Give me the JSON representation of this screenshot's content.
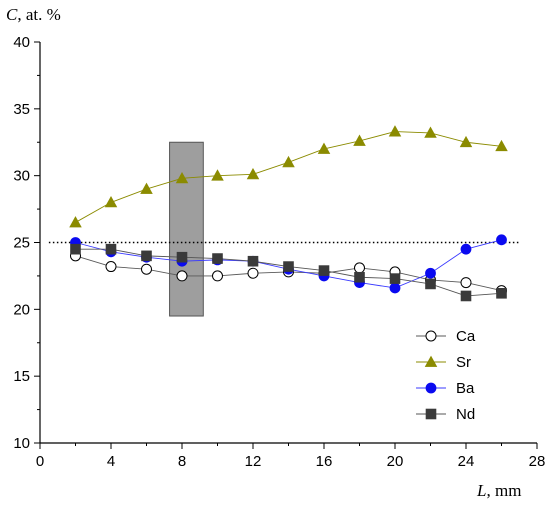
{
  "chart_data": {
    "type": "line",
    "title": "",
    "ylabel": {
      "var": "C",
      "rest": ", at. %"
    },
    "xlabel": {
      "var": "L",
      "rest": ", mm"
    },
    "xlim": [
      0,
      28
    ],
    "ylim": [
      10,
      40
    ],
    "xticks": [
      0,
      4,
      8,
      12,
      16,
      20,
      24,
      28
    ],
    "yticks": [
      10,
      15,
      20,
      25,
      30,
      35,
      40
    ],
    "grid": false,
    "legend_position": "bottom-right",
    "reference_line": {
      "y": 25,
      "x_range": [
        0.5,
        27
      ],
      "style": "dotted"
    },
    "highlight_region": {
      "x_range": [
        7.3,
        9.2
      ],
      "y_range": [
        19.5,
        32.5
      ],
      "color": "#9e9e9e"
    },
    "series": [
      {
        "name": "Ca",
        "marker": "circle-open",
        "color": "#000000",
        "line_color": "#5a5a5a",
        "x": [
          2,
          4,
          6,
          8,
          10,
          12,
          14,
          16,
          18,
          20,
          22,
          24,
          26
        ],
        "y": [
          24.0,
          23.2,
          23.0,
          22.5,
          22.5,
          22.7,
          22.8,
          22.7,
          23.1,
          22.8,
          22.2,
          22.0,
          21.4
        ]
      },
      {
        "name": "Sr",
        "marker": "triangle",
        "color": "#8b8b00",
        "line_color": "#8b8b00",
        "x": [
          2,
          4,
          6,
          8,
          10,
          12,
          14,
          16,
          18,
          20,
          22,
          24,
          26
        ],
        "y": [
          26.5,
          28.0,
          29.0,
          29.8,
          30.0,
          30.1,
          31.0,
          32.0,
          32.6,
          33.3,
          33.2,
          32.5,
          32.2
        ]
      },
      {
        "name": "Ba",
        "marker": "circle",
        "color": "#0a0af0",
        "line_color": "#3a3aff",
        "x": [
          2,
          4,
          6,
          8,
          10,
          12,
          14,
          16,
          18,
          20,
          22,
          24,
          26
        ],
        "y": [
          25.0,
          24.3,
          23.9,
          23.6,
          23.7,
          23.6,
          23.0,
          22.5,
          22.0,
          21.6,
          22.7,
          24.5,
          25.2
        ]
      },
      {
        "name": "Nd",
        "marker": "square",
        "color": "#3a3a3a",
        "line_color": "#555555",
        "x": [
          2,
          4,
          6,
          8,
          10,
          12,
          14,
          16,
          18,
          20,
          22,
          24,
          26
        ],
        "y": [
          24.5,
          24.5,
          24.0,
          23.9,
          23.8,
          23.6,
          23.2,
          22.9,
          22.4,
          22.3,
          21.9,
          21.0,
          21.2
        ]
      }
    ]
  }
}
